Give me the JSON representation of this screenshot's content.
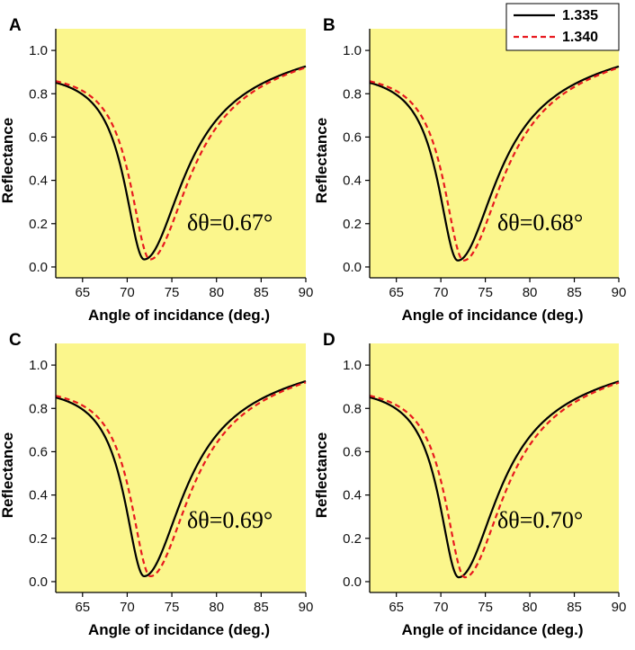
{
  "colors": {
    "plot_background": "#fbf68c",
    "series_1": "#000000",
    "series_2": "#e8191f"
  },
  "legend": {
    "placement": "top-right of panel B",
    "entries": [
      {
        "label": "1.335",
        "style": "solid",
        "color": "#000000"
      },
      {
        "label": "1.340",
        "style": "dashed",
        "color": "#e8191f"
      }
    ]
  },
  "chart_data": [
    {
      "panel": "A",
      "type": "line",
      "xlabel": "Angle of incidance (deg.)",
      "ylabel": "Reflectance",
      "xlim": [
        62,
        90
      ],
      "ylim": [
        -0.05,
        1.1
      ],
      "xticks": [
        "65",
        "70",
        "75",
        "80",
        "85",
        "90"
      ],
      "yticks": [
        "0.0",
        "0.2",
        "0.4",
        "0.6",
        "0.8",
        "1.0"
      ],
      "annotation": "δθ=0.67°",
      "series": [
        {
          "name": "1.335",
          "style": "solid",
          "min_angle": 71.9,
          "min_value": 0.035
        },
        {
          "name": "1.340",
          "style": "dashed",
          "min_angle": 72.55,
          "min_value": 0.035
        }
      ]
    },
    {
      "panel": "B",
      "type": "line",
      "xlabel": "Angle of incidance (deg.)",
      "ylabel": "Reflectance",
      "xlim": [
        62,
        90
      ],
      "ylim": [
        -0.05,
        1.1
      ],
      "xticks": [
        "65",
        "70",
        "75",
        "80",
        "85",
        "90"
      ],
      "yticks": [
        "0.0",
        "0.2",
        "0.4",
        "0.6",
        "0.8",
        "1.0"
      ],
      "annotation": "δθ=0.68°",
      "series": [
        {
          "name": "1.335",
          "style": "solid",
          "min_angle": 71.9,
          "min_value": 0.03
        },
        {
          "name": "1.340",
          "style": "dashed",
          "min_angle": 72.55,
          "min_value": 0.03
        }
      ]
    },
    {
      "panel": "C",
      "type": "line",
      "xlabel": "Angle of incidance (deg.)",
      "ylabel": "Reflectance",
      "xlim": [
        62,
        90
      ],
      "ylim": [
        -0.05,
        1.1
      ],
      "xticks": [
        "65",
        "70",
        "75",
        "80",
        "85",
        "90"
      ],
      "yticks": [
        "0.0",
        "0.2",
        "0.4",
        "0.6",
        "0.8",
        "1.0"
      ],
      "annotation": "δθ=0.69°",
      "series": [
        {
          "name": "1.335",
          "style": "solid",
          "min_angle": 71.9,
          "min_value": 0.025
        },
        {
          "name": "1.340",
          "style": "dashed",
          "min_angle": 72.6,
          "min_value": 0.025
        }
      ]
    },
    {
      "panel": "D",
      "type": "line",
      "xlabel": "Angle of incidance (deg.)",
      "ylabel": "Reflectance",
      "xlim": [
        62,
        90
      ],
      "ylim": [
        -0.05,
        1.1
      ],
      "xticks": [
        "65",
        "70",
        "75",
        "80",
        "85",
        "90"
      ],
      "yticks": [
        "0.0",
        "0.2",
        "0.4",
        "0.6",
        "0.8",
        "1.0"
      ],
      "annotation": "δθ=0.70°",
      "series": [
        {
          "name": "1.335",
          "style": "solid",
          "min_angle": 72.0,
          "min_value": 0.02
        },
        {
          "name": "1.340",
          "style": "dashed",
          "min_angle": 72.7,
          "min_value": 0.02
        }
      ]
    }
  ]
}
